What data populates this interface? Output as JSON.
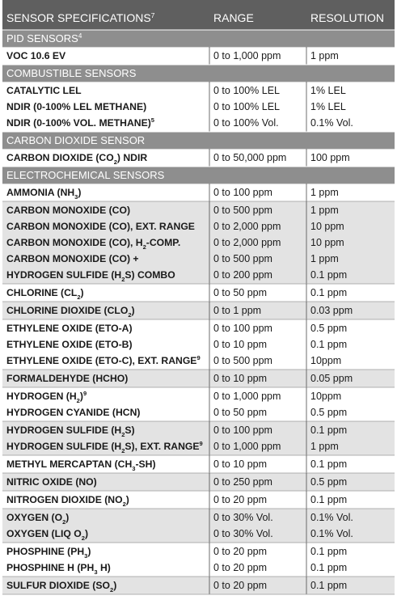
{
  "header": {
    "col1": "SENSOR SPECIFICATIONS",
    "col1_sup": "7",
    "col2": "RANGE",
    "col3": "RESOLUTION"
  },
  "colors": {
    "header_bg": "#5f5f5f",
    "section_bg": "#8e8e8e",
    "shade_bg": "#e3e3e3",
    "plain_bg": "#ffffff",
    "text": "#1a1a1a",
    "header_text": "#ffffff"
  },
  "rows": [
    {
      "kind": "section",
      "label": "PID SENSORS",
      "sup": "4"
    },
    {
      "kind": "group",
      "shade": false,
      "items": [
        {
          "name": [
            {
              "t": "VOC 10.6 EV"
            }
          ],
          "range": "0 to 1,000 ppm",
          "res": "1 ppm"
        }
      ]
    },
    {
      "kind": "section",
      "label": "COMBUSTIBLE SENSORS"
    },
    {
      "kind": "group",
      "shade": false,
      "items": [
        {
          "name": [
            {
              "t": "CATALYTIC LEL"
            }
          ],
          "range": "0 to 100% LEL",
          "res": "1% LEL"
        },
        {
          "name": [
            {
              "t": "NDIR (0-100% LEL METHANE)"
            }
          ],
          "range": "0 to 100% LEL",
          "res": "1% LEL"
        },
        {
          "name": [
            {
              "t": "NDIR (0-100% VOL. METHANE)"
            },
            {
              "t": "5",
              "v": "sup"
            }
          ],
          "range": "0 to 100% Vol.",
          "res": "0.1% Vol."
        }
      ]
    },
    {
      "kind": "section",
      "label": "CARBON DIOXIDE SENSOR"
    },
    {
      "kind": "group",
      "shade": false,
      "items": [
        {
          "name": [
            {
              "t": "CARBON DIOXIDE (CO"
            },
            {
              "t": "2",
              "v": "sub"
            },
            {
              "t": ") NDIR"
            }
          ],
          "range": "0 to 50,000 ppm",
          "res": "100 ppm"
        }
      ]
    },
    {
      "kind": "section",
      "label": "ELECTROCHEMICAL SENSORS"
    },
    {
      "kind": "group",
      "shade": false,
      "items": [
        {
          "name": [
            {
              "t": "AMMONIA (NH"
            },
            {
              "t": "3",
              "v": "sub"
            },
            {
              "t": ")"
            }
          ],
          "range": "0 to 100 ppm",
          "res": "1 ppm"
        }
      ]
    },
    {
      "kind": "group",
      "shade": true,
      "items": [
        {
          "name": [
            {
              "t": "CARBON MONOXIDE (CO)"
            }
          ],
          "range": "0 to 500 ppm",
          "res": "1 ppm"
        },
        {
          "name": [
            {
              "t": "CARBON MONOXIDE (CO), EXT. RANGE"
            }
          ],
          "range": "0 to 2,000 ppm",
          "res": "10 ppm"
        },
        {
          "name": [
            {
              "t": "CARBON MONOXIDE (CO), H"
            },
            {
              "t": "2",
              "v": "sub"
            },
            {
              "t": "-COMP."
            }
          ],
          "range": "0 to 2,000 ppm",
          "res": "10 ppm"
        },
        {
          "name": [
            {
              "t": "CARBON MONOXIDE (CO) +"
            }
          ],
          "range": "0 to 500 ppm",
          "res": "1 ppm"
        },
        {
          "name": [
            {
              "t": "HYDROGEN SULFIDE (H"
            },
            {
              "t": "2",
              "v": "sub"
            },
            {
              "t": "S) COMBO"
            }
          ],
          "range": "0 to 200 ppm",
          "res": "0.1 ppm"
        }
      ]
    },
    {
      "kind": "group",
      "shade": false,
      "items": [
        {
          "name": [
            {
              "t": "CHLORINE (CL"
            },
            {
              "t": "2",
              "v": "sub"
            },
            {
              "t": ")"
            }
          ],
          "range": "0 to 50 ppm",
          "res": "0.1 ppm"
        }
      ]
    },
    {
      "kind": "group",
      "shade": true,
      "items": [
        {
          "name": [
            {
              "t": "CHLORINE DIOXIDE (CLO"
            },
            {
              "t": "2",
              "v": "sub"
            },
            {
              "t": ")"
            }
          ],
          "range": "0 to 1 ppm",
          "res": "0.03 ppm"
        }
      ]
    },
    {
      "kind": "group",
      "shade": false,
      "items": [
        {
          "name": [
            {
              "t": "ETHYLENE OXIDE (ETO-A)"
            }
          ],
          "range": "0 to 100 ppm",
          "res": "0.5 ppm"
        },
        {
          "name": [
            {
              "t": "ETHYLENE OXIDE (ETO-B)"
            }
          ],
          "range": "0 to 10 ppm",
          "res": "0.1 ppm"
        },
        {
          "name": [
            {
              "t": "ETHYLENE OXIDE (ETO-C), EXT. RANGE"
            },
            {
              "t": "9",
              "v": "sup"
            }
          ],
          "range": "0 to 500 ppm",
          "res": "10ppm"
        }
      ]
    },
    {
      "kind": "group",
      "shade": true,
      "items": [
        {
          "name": [
            {
              "t": "FORMALDEHYDE (HCHO)"
            }
          ],
          "range": "0 to 10 ppm",
          "res": "0.05 ppm"
        }
      ]
    },
    {
      "kind": "group",
      "shade": false,
      "items": [
        {
          "name": [
            {
              "t": "HYDROGEN (H"
            },
            {
              "t": "2",
              "v": "sub"
            },
            {
              "t": ")"
            },
            {
              "t": "9",
              "v": "sup"
            }
          ],
          "range": "0 to 1,000 ppm",
          "res": "10ppm"
        },
        {
          "name": [
            {
              "t": "HYDROGEN CYANIDE (HCN)"
            }
          ],
          "range": "0 to 50 ppm",
          "res": "0.5 ppm"
        }
      ]
    },
    {
      "kind": "group",
      "shade": true,
      "items": [
        {
          "name": [
            {
              "t": "HYDROGEN SULFIDE (H"
            },
            {
              "t": "2",
              "v": "sub"
            },
            {
              "t": "S)"
            }
          ],
          "range": "0 to 100 ppm",
          "res": "0.1 ppm"
        },
        {
          "name": [
            {
              "t": "HYDROGEN SULFIDE (H"
            },
            {
              "t": "2",
              "v": "sub"
            },
            {
              "t": "S), EXT. RANGE"
            },
            {
              "t": "9",
              "v": "sup"
            }
          ],
          "range": "0 to 1,000 ppm",
          "res": "1 ppm"
        }
      ]
    },
    {
      "kind": "group",
      "shade": false,
      "items": [
        {
          "name": [
            {
              "t": "METHYL MERCAPTAN (CH"
            },
            {
              "t": "3",
              "v": "sub"
            },
            {
              "t": "-SH)"
            }
          ],
          "range": "0 to 10 ppm",
          "res": "0.1 ppm"
        }
      ]
    },
    {
      "kind": "group",
      "shade": true,
      "items": [
        {
          "name": [
            {
              "t": "NITRIC OXIDE (NO)"
            }
          ],
          "range": "0 to 250 ppm",
          "res": "0.5 ppm"
        }
      ]
    },
    {
      "kind": "group",
      "shade": false,
      "items": [
        {
          "name": [
            {
              "t": "NITROGEN DIOXIDE (NO"
            },
            {
              "t": "2",
              "v": "sub"
            },
            {
              "t": ")"
            }
          ],
          "range": "0 to 20 ppm",
          "res": "0.1 ppm"
        }
      ]
    },
    {
      "kind": "group",
      "shade": true,
      "items": [
        {
          "name": [
            {
              "t": "OXYGEN (O"
            },
            {
              "t": "2",
              "v": "sub"
            },
            {
              "t": ")"
            }
          ],
          "range": "0 to 30% Vol.",
          "res": "0.1% Vol."
        },
        {
          "name": [
            {
              "t": "OXYGEN (LIQ O"
            },
            {
              "t": "2",
              "v": "sub"
            },
            {
              "t": ")"
            }
          ],
          "range": "0 to 30% Vol.",
          "res": "0.1% Vol."
        }
      ]
    },
    {
      "kind": "group",
      "shade": false,
      "items": [
        {
          "name": [
            {
              "t": "PHOSPHINE (PH"
            },
            {
              "t": "3",
              "v": "sub"
            },
            {
              "t": ")"
            }
          ],
          "range": "0 to 20 ppm",
          "res": "0.1 ppm"
        },
        {
          "name": [
            {
              "t": "PHOSPHINE H (PH"
            },
            {
              "t": "3",
              "v": "sub"
            },
            {
              "t": " H)"
            }
          ],
          "range": "0 to 20 ppm",
          "res": "0.1 ppm"
        }
      ]
    },
    {
      "kind": "group",
      "shade": true,
      "items": [
        {
          "name": [
            {
              "t": "SULFUR DIOXIDE (SO"
            },
            {
              "t": "2",
              "v": "sub"
            },
            {
              "t": ")"
            }
          ],
          "range": "0 to 20 ppm",
          "res": "0.1 ppm"
        }
      ]
    }
  ]
}
